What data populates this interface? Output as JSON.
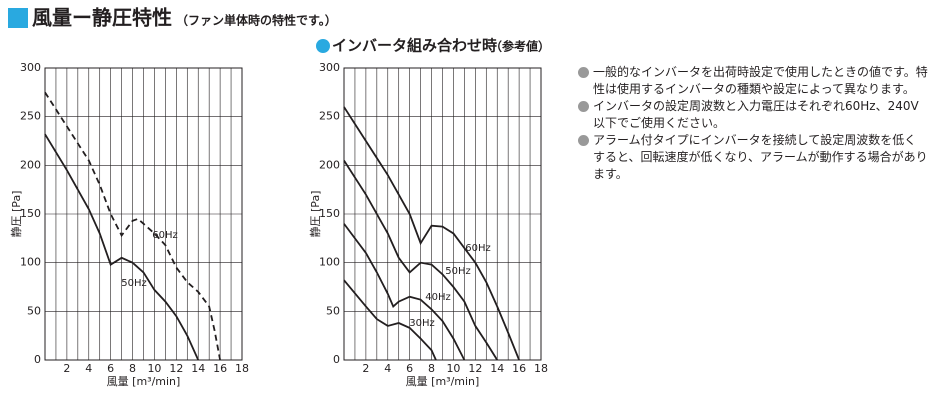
{
  "header": {
    "title": "風量ー静圧特性",
    "subtitle": "（ファン単体時の特性です。）"
  },
  "chart_data": [
    {
      "type": "line",
      "xlabel": "風量 [m³/min]",
      "ylabel": "静圧 [Pa]",
      "xlim": [
        0,
        18
      ],
      "ylim": [
        0,
        300
      ],
      "xticks": [
        2,
        4,
        6,
        8,
        10,
        12,
        14,
        16,
        18
      ],
      "xminorticks": [
        1,
        3,
        5,
        7,
        9,
        11,
        13,
        15,
        17
      ],
      "yticks": [
        0,
        50,
        100,
        150,
        200,
        250,
        300
      ],
      "grid": true,
      "series": [
        {
          "name": "60Hz",
          "color": "#231f20",
          "dashed": true,
          "x": [
            0,
            2,
            4,
            5,
            6,
            7,
            8,
            8.5,
            9,
            10,
            11,
            12,
            13,
            14,
            15,
            15.5,
            16
          ],
          "values": [
            275,
            240,
            205,
            180,
            150,
            128,
            143,
            145,
            140,
            130,
            118,
            95,
            80,
            70,
            55,
            30,
            0
          ]
        },
        {
          "name": "50Hz",
          "color": "#231f20",
          "dashed": false,
          "x": [
            0,
            2,
            4,
            5,
            6,
            7,
            8,
            9,
            10,
            11,
            12,
            13,
            14
          ],
          "values": [
            232,
            195,
            155,
            130,
            98,
            105,
            100,
            90,
            72,
            60,
            45,
            25,
            0
          ]
        }
      ]
    },
    {
      "type": "line",
      "title": "インバータ組み合わせ時",
      "subtitle": "（参考値）",
      "xlabel": "風量 [m³/min]",
      "ylabel": "静圧 [Pa]",
      "xlim": [
        0,
        18
      ],
      "ylim": [
        0,
        300
      ],
      "xticks": [
        2,
        4,
        6,
        8,
        10,
        12,
        14,
        16,
        18
      ],
      "xminorticks": [
        1,
        3,
        5,
        7,
        9,
        11,
        13,
        15,
        17
      ],
      "yticks": [
        0,
        50,
        100,
        150,
        200,
        250,
        300
      ],
      "grid": true,
      "series": [
        {
          "name": "60Hz",
          "color": "#231f20",
          "dashed": false,
          "x": [
            0,
            2,
            4,
            6,
            7,
            8,
            9,
            10,
            11,
            12,
            13,
            14,
            15,
            16
          ],
          "values": [
            260,
            225,
            190,
            150,
            120,
            138,
            137,
            130,
            115,
            100,
            80,
            55,
            28,
            0
          ]
        },
        {
          "name": "50Hz",
          "color": "#231f20",
          "dashed": false,
          "x": [
            0,
            2,
            4,
            5,
            6,
            7,
            8,
            9,
            10,
            11,
            12,
            13,
            14
          ],
          "values": [
            205,
            170,
            130,
            105,
            90,
            100,
            98,
            88,
            75,
            60,
            35,
            18,
            0
          ]
        },
        {
          "name": "40Hz",
          "color": "#231f20",
          "dashed": false,
          "x": [
            0,
            2,
            3,
            4,
            4.5,
            5,
            6,
            7,
            8,
            9,
            10,
            11
          ],
          "values": [
            140,
            110,
            90,
            68,
            55,
            60,
            65,
            62,
            52,
            40,
            22,
            0
          ]
        },
        {
          "name": "30Hz",
          "color": "#231f20",
          "dashed": false,
          "x": [
            0,
            2,
            3,
            4,
            5,
            6,
            7,
            8,
            8.4
          ],
          "values": [
            82,
            55,
            42,
            35,
            38,
            33,
            22,
            10,
            0
          ]
        }
      ]
    }
  ],
  "notes": [
    "一般的なインバータを出荷時設定で使用したときの値です。特性は使用するインバータの種類や設定によって異なります。",
    "インバータの設定周波数と入力電圧はそれぞれ60Hz、240V以下でご使用ください。",
    "アラーム付タイプにインバータを接続して設定周波数を低くすると、回転速度が低くなり、アラームが動作する場合があります。"
  ]
}
